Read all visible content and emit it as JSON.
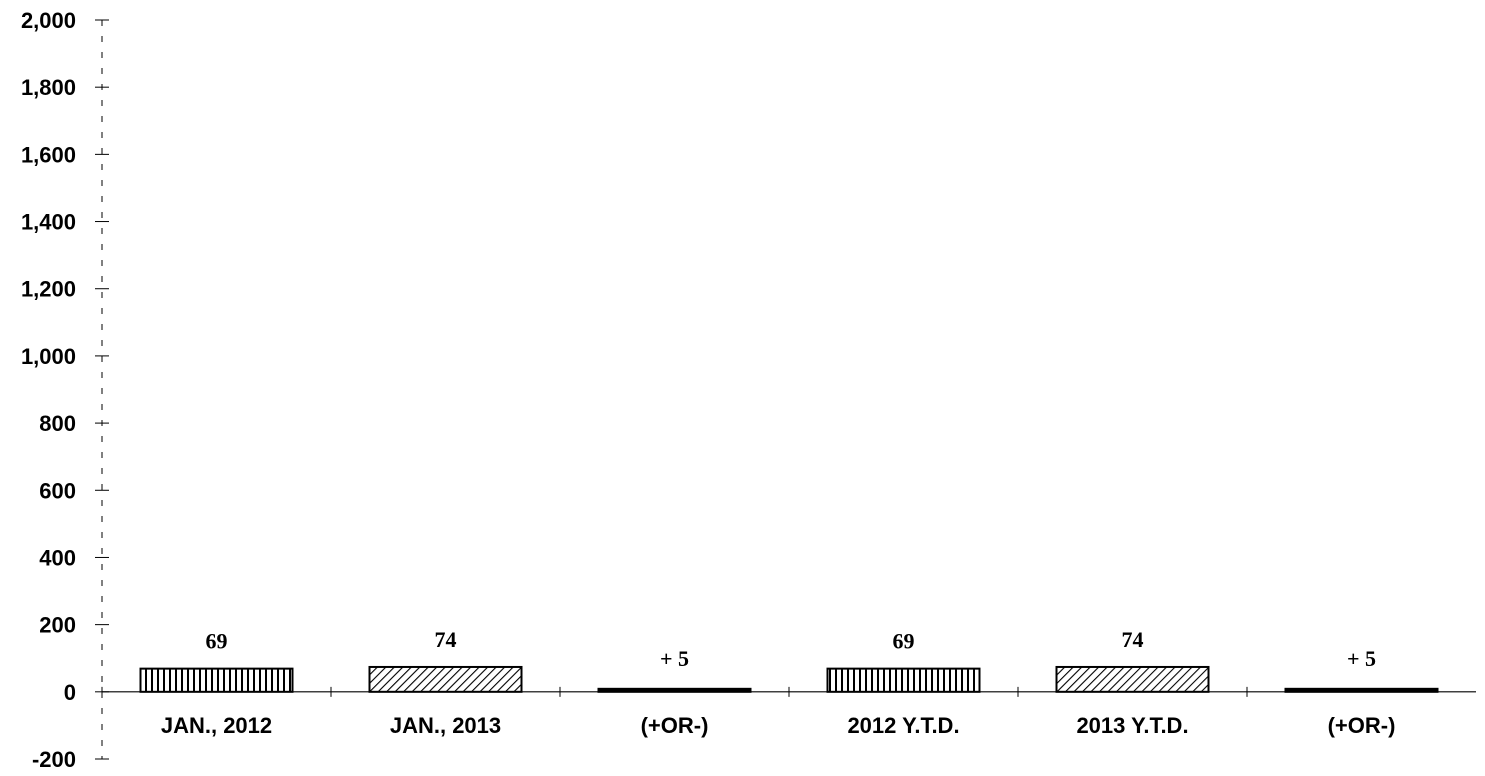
{
  "chart_data": {
    "type": "bar",
    "categories": [
      "JAN., 2012",
      "JAN., 2013",
      "(+OR-)",
      "2012 Y.T.D.",
      "2013 Y.T.D.",
      "(+OR-)"
    ],
    "values": [
      69,
      74,
      5,
      69,
      74,
      5
    ],
    "data_labels": [
      "69",
      "74",
      "+ 5",
      "69",
      "74",
      "+ 5"
    ],
    "bar_patterns": [
      "vertical-hatch",
      "diagonal-hatch",
      "solid",
      "vertical-hatch",
      "diagonal-hatch",
      "solid"
    ],
    "ylim": [
      -200,
      2000
    ],
    "yticks": [
      -200,
      0,
      200,
      400,
      600,
      800,
      1000,
      1200,
      1400,
      1600,
      1800,
      2000
    ],
    "ytick_labels": [
      "-200",
      "0",
      "200",
      "400",
      "600",
      "800",
      "1,000",
      "1,200",
      "1,400",
      "1,600",
      "1,800",
      "2,000"
    ],
    "grid": false,
    "title": "",
    "xlabel": "",
    "ylabel": "",
    "colors": {
      "bar_stroke": "#000000",
      "axis": "#000000",
      "background": "#ffffff"
    }
  }
}
